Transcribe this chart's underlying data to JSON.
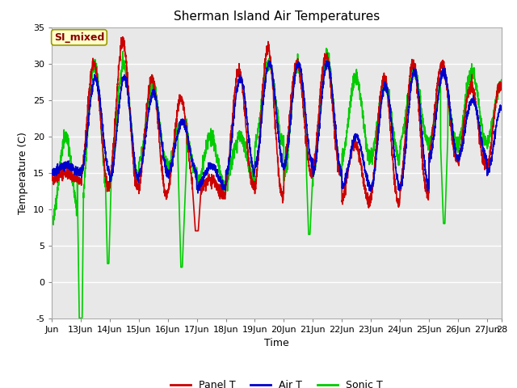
{
  "title": "Sherman Island Air Temperatures",
  "xlabel": "Time",
  "ylabel": "Temperature (C)",
  "ylim": [
    -5,
    35
  ],
  "annotation": "SI_mixed",
  "fig_facecolor": "#ffffff",
  "plot_bg_color": "#e8e8e8",
  "line_colors": {
    "panel": "#cc0000",
    "air": "#0000cc",
    "sonic": "#00cc00"
  },
  "line_width": 1.2,
  "legend_labels": [
    "Panel T",
    "Air T",
    "Sonic T"
  ],
  "xtick_labels": [
    "Jun",
    "13Jun",
    "14Jun",
    "15Jun",
    "16Jun",
    "17Jun",
    "18Jun",
    "19Jun",
    "20Jun",
    "21Jun",
    "22Jun",
    "23Jun",
    "24Jun",
    "25Jun",
    "26Jun",
    "27Jun",
    "28"
  ],
  "ytick_vals": [
    -5,
    0,
    5,
    10,
    15,
    20,
    25,
    30,
    35
  ],
  "annotation_box_facecolor": "#ffffcc",
  "annotation_box_edgecolor": "#999900",
  "annotation_text_color": "#880000",
  "grid_color": "#ffffff",
  "tick_fontsize": 8,
  "label_fontsize": 9,
  "title_fontsize": 11
}
